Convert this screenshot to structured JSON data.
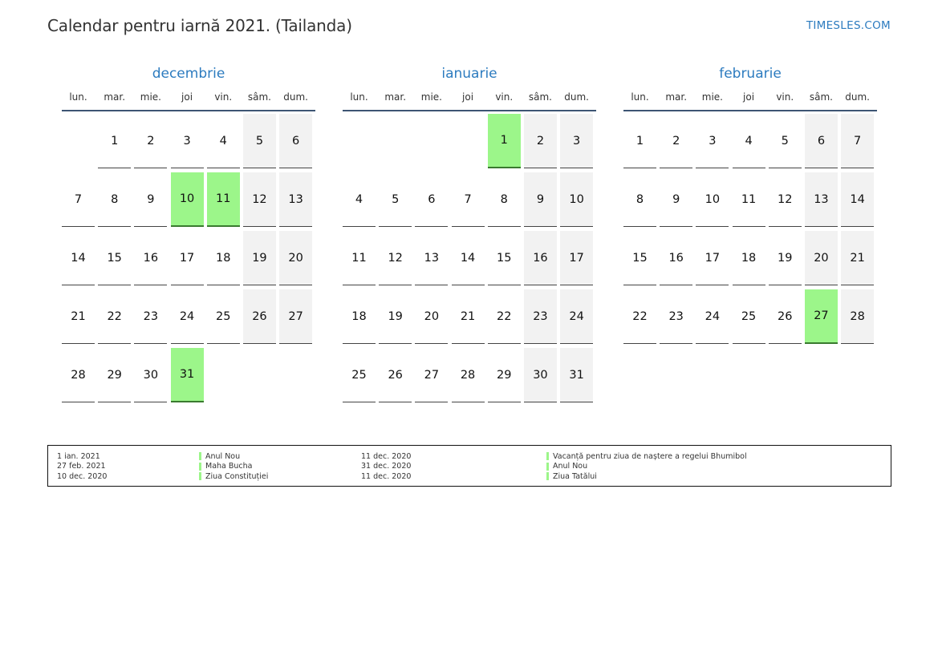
{
  "header": {
    "title": "Calendar pentru iarnă 2021. (Tailanda)",
    "site": "TIMESLES.COM"
  },
  "weekday_labels": [
    "lun.",
    "mar.",
    "mie.",
    "joi",
    "vin.",
    "sâm.",
    "dum."
  ],
  "months": [
    {
      "name": "decembrie",
      "weeks": [
        [
          null,
          1,
          2,
          3,
          4,
          5,
          6
        ],
        [
          7,
          8,
          9,
          10,
          11,
          12,
          13
        ],
        [
          14,
          15,
          16,
          17,
          18,
          19,
          20
        ],
        [
          21,
          22,
          23,
          24,
          25,
          26,
          27
        ],
        [
          28,
          29,
          30,
          31,
          null,
          null,
          null
        ]
      ],
      "holidays": [
        10,
        11,
        31
      ]
    },
    {
      "name": "ianuarie",
      "weeks": [
        [
          null,
          null,
          null,
          null,
          1,
          2,
          3
        ],
        [
          4,
          5,
          6,
          7,
          8,
          9,
          10
        ],
        [
          11,
          12,
          13,
          14,
          15,
          16,
          17
        ],
        [
          18,
          19,
          20,
          21,
          22,
          23,
          24
        ],
        [
          25,
          26,
          27,
          28,
          29,
          30,
          31
        ]
      ],
      "holidays": [
        1
      ]
    },
    {
      "name": "februarie",
      "weeks": [
        [
          1,
          2,
          3,
          4,
          5,
          6,
          7
        ],
        [
          8,
          9,
          10,
          11,
          12,
          13,
          14
        ],
        [
          15,
          16,
          17,
          18,
          19,
          20,
          21
        ],
        [
          22,
          23,
          24,
          25,
          26,
          27,
          28
        ]
      ],
      "holidays": [
        27
      ]
    }
  ],
  "legend": {
    "left": [
      {
        "date": "1 ian. 2021",
        "name": "Anul Nou"
      },
      {
        "date": "27 feb. 2021",
        "name": "Maha Bucha"
      },
      {
        "date": "10 dec. 2020",
        "name": "Ziua Constituției"
      }
    ],
    "right": [
      {
        "date": "11 dec. 2020",
        "name": "Vacanță pentru ziua de naștere a regelui Bhumibol"
      },
      {
        "date": "31 dec. 2020",
        "name": "Anul Nou"
      },
      {
        "date": "11 dec. 2020",
        "name": "Ziua Tatălui"
      }
    ]
  },
  "colors": {
    "holiday": "#9cf68a",
    "weekend": "#f2f2f2",
    "accent": "#2c7bbf"
  }
}
